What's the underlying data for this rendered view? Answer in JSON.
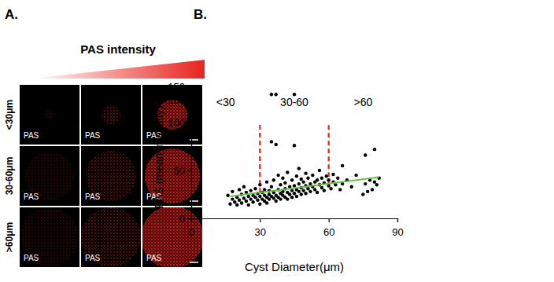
{
  "chart_data": [
    {
      "type": "image_grid",
      "panel_label": "A.",
      "title": "PAS intensity",
      "row_labels": [
        "<30μm",
        "30-60μm",
        ">60μm"
      ],
      "cell_label": "PAS",
      "color": "#e8231f"
    },
    {
      "type": "scatter",
      "panel_label": "B.",
      "xlabel": "Cyst Diameter(μm)",
      "ylabel": "PAS (mean intensity)",
      "color": "#000000",
      "x": [
        16,
        17,
        18,
        18,
        19,
        20,
        20,
        21,
        21,
        22,
        22,
        23,
        23,
        24,
        24,
        25,
        25,
        26,
        26,
        27,
        27,
        28,
        28,
        29,
        29,
        30,
        30,
        30,
        31,
        31,
        32,
        32,
        32,
        33,
        33,
        33,
        34,
        34,
        34,
        35,
        35,
        35,
        36,
        36,
        36,
        37,
        37,
        37,
        38,
        38,
        38,
        39,
        39,
        39,
        40,
        40,
        40,
        41,
        41,
        41,
        42,
        42,
        42,
        43,
        43,
        44,
        44,
        44,
        45,
        45,
        45,
        46,
        46,
        46,
        47,
        47,
        47,
        48,
        48,
        48,
        49,
        49,
        50,
        50,
        50,
        51,
        51,
        52,
        52,
        53,
        53,
        54,
        54,
        55,
        55,
        56,
        56,
        57,
        57,
        58,
        58,
        59,
        60,
        60,
        61,
        62,
        62,
        63,
        64,
        65,
        66,
        66,
        68,
        70,
        72,
        75,
        76,
        76,
        77,
        78,
        79,
        80,
        80,
        81,
        82,
        35,
        37,
        45
      ],
      "values": [
        24,
        15,
        20,
        28,
        17,
        22,
        14,
        30,
        19,
        25,
        16,
        21,
        33,
        18,
        27,
        23,
        14,
        20,
        29,
        17,
        24,
        22,
        31,
        19,
        26,
        15,
        23,
        35,
        20,
        27,
        18,
        24,
        30,
        22,
        16,
        38,
        25,
        20,
        29,
        23,
        33,
        80,
        21,
        27,
        40,
        24,
        18,
        77,
        30,
        22,
        45,
        26,
        20,
        35,
        28,
        24,
        42,
        22,
        31,
        37,
        27,
        20,
        48,
        33,
        25,
        29,
        22,
        40,
        76,
        34,
        26,
        30,
        44,
        23,
        36,
        28,
        52,
        25,
        32,
        41,
        29,
        38,
        34,
        26,
        47,
        31,
        42,
        28,
        36,
        33,
        45,
        30,
        38,
        40,
        27,
        35,
        50,
        32,
        42,
        37,
        29,
        44,
        34,
        40,
        31,
        38,
        46,
        35,
        42,
        30,
        36,
        55,
        40,
        33,
        45,
        25,
        66,
        36,
        28,
        40,
        30,
        72,
        38,
        35,
        42,
        120,
        120,
        120
      ],
      "xlim": [
        0,
        90
      ],
      "xticks": [
        0,
        30,
        60,
        90
      ],
      "y_segments": [
        {
          "ylim": [
            0,
            100
          ],
          "yticks": [
            0,
            50,
            100
          ]
        },
        {
          "ylim": [
            100,
            150
          ],
          "yticks": [
            100,
            150
          ]
        }
      ],
      "trend_line": {
        "x": [
          17,
          82
        ],
        "y": [
          23,
          43
        ],
        "color": "#6cc04a"
      },
      "vlines": [
        {
          "x": 30,
          "y": [
            27,
            100
          ],
          "color": "#e8231f",
          "line_style": "dashed"
        },
        {
          "x": 60,
          "y": [
            35,
            100
          ],
          "color": "#e8231f",
          "line_style": "dashed"
        }
      ],
      "region_labels": [
        "<30",
        "30-60",
        ">60"
      ]
    }
  ]
}
